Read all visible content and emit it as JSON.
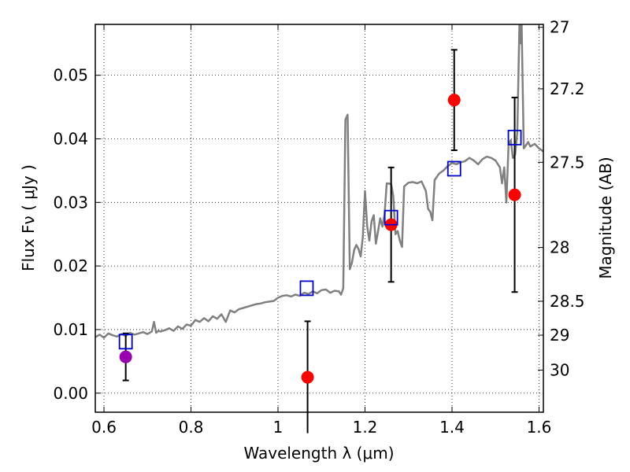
{
  "chart_data": {
    "type": "scatter",
    "xlabel": "Wavelength  λ (μm)",
    "ylabel": "Flux  Fν  ( μJy )",
    "ylabel_right": "Magnitude (AB)",
    "xlim": [
      0.58,
      1.61
    ],
    "ylim": [
      -0.003,
      0.058
    ],
    "grid": true,
    "x_ticks": [
      {
        "value": 0.6,
        "label": "0.6"
      },
      {
        "value": 0.8,
        "label": "0.8"
      },
      {
        "value": 1.0,
        "label": "1"
      },
      {
        "value": 1.2,
        "label": "1.2"
      },
      {
        "value": 1.4,
        "label": "1.4"
      },
      {
        "value": 1.6,
        "label": "1.6"
      }
    ],
    "y_ticks": [
      {
        "value": 0.0,
        "label": "0.00"
      },
      {
        "value": 0.01,
        "label": "0.01"
      },
      {
        "value": 0.02,
        "label": "0.02"
      },
      {
        "value": 0.03,
        "label": "0.03"
      },
      {
        "value": 0.04,
        "label": "0.04"
      },
      {
        "value": 0.05,
        "label": "0.05"
      }
    ],
    "right_ticks": [
      {
        "mag": 27,
        "label": "27"
      },
      {
        "mag": 27.2,
        "label": "27.2"
      },
      {
        "mag": 27.5,
        "label": "27.5"
      },
      {
        "mag": 28,
        "label": "28"
      },
      {
        "mag": 28.5,
        "label": "28.5"
      },
      {
        "mag": 29,
        "label": "29"
      },
      {
        "mag": 30,
        "label": "30"
      }
    ],
    "colors": {
      "model": "#808080",
      "observed": "#ff0000",
      "observed_optical": "#9900b0",
      "synthetic": "#0000cc",
      "grid": "#000000"
    },
    "series": [
      {
        "kind": "line",
        "x": [
          0.58,
          0.59,
          0.6,
          0.61,
          0.62,
          0.63,
          0.64,
          0.65,
          0.66,
          0.67,
          0.68,
          0.69,
          0.7,
          0.71,
          0.715,
          0.72,
          0.725,
          0.73,
          0.74,
          0.75,
          0.76,
          0.77,
          0.78,
          0.79,
          0.8,
          0.81,
          0.82,
          0.83,
          0.84,
          0.85,
          0.86,
          0.87,
          0.88,
          0.89,
          0.9,
          0.91,
          0.92,
          0.93,
          0.94,
          0.95,
          0.96,
          0.97,
          0.98,
          0.99,
          1.0,
          1.01,
          1.02,
          1.03,
          1.04,
          1.05,
          1.06,
          1.07,
          1.08,
          1.09,
          1.1,
          1.11,
          1.12,
          1.13,
          1.14,
          1.145,
          1.15,
          1.155,
          1.16,
          1.165,
          1.17,
          1.175,
          1.18,
          1.185,
          1.19,
          1.195,
          1.2,
          1.205,
          1.21,
          1.215,
          1.22,
          1.225,
          1.23,
          1.235,
          1.24,
          1.245,
          1.25,
          1.26,
          1.265,
          1.27,
          1.275,
          1.28,
          1.285,
          1.29,
          1.3,
          1.31,
          1.32,
          1.33,
          1.34,
          1.345,
          1.35,
          1.355,
          1.36,
          1.37,
          1.38,
          1.39,
          1.4,
          1.41,
          1.42,
          1.43,
          1.44,
          1.45,
          1.46,
          1.47,
          1.48,
          1.49,
          1.5,
          1.51,
          1.515,
          1.52,
          1.525,
          1.53,
          1.535,
          1.54,
          1.545,
          1.55,
          1.553,
          1.555,
          1.558,
          1.56,
          1.565,
          1.57,
          1.575,
          1.58,
          1.59,
          1.6,
          1.61
        ],
        "y": [
          0.0088,
          0.0092,
          0.0087,
          0.0094,
          0.0091,
          0.0089,
          0.0093,
          0.009,
          0.0095,
          0.0092,
          0.0094,
          0.0096,
          0.0093,
          0.0097,
          0.0112,
          0.0095,
          0.0098,
          0.0097,
          0.0099,
          0.0102,
          0.0098,
          0.0105,
          0.0101,
          0.0108,
          0.0106,
          0.0115,
          0.0112,
          0.0118,
          0.0113,
          0.0121,
          0.0117,
          0.0124,
          0.0112,
          0.013,
          0.0127,
          0.0132,
          0.0134,
          0.0136,
          0.0138,
          0.014,
          0.0141,
          0.0143,
          0.0144,
          0.0145,
          0.015,
          0.0153,
          0.0154,
          0.0152,
          0.0155,
          0.0153,
          0.0158,
          0.0156,
          0.016,
          0.0157,
          0.0162,
          0.0163,
          0.0158,
          0.0161,
          0.016,
          0.0155,
          0.0165,
          0.043,
          0.0438,
          0.0195,
          0.0205,
          0.0225,
          0.0233,
          0.0227,
          0.0215,
          0.0245,
          0.0318,
          0.0262,
          0.024,
          0.027,
          0.028,
          0.0235,
          0.0255,
          0.0275,
          0.0262,
          0.0282,
          0.033,
          0.0329,
          0.031,
          0.025,
          0.0255,
          0.024,
          0.023,
          0.0325,
          0.0331,
          0.0332,
          0.033,
          0.0333,
          0.0318,
          0.029,
          0.0285,
          0.0272,
          0.0335,
          0.0345,
          0.035,
          0.0357,
          0.0362,
          0.036,
          0.0363,
          0.0365,
          0.037,
          0.0366,
          0.036,
          0.0368,
          0.0372,
          0.037,
          0.0366,
          0.0355,
          0.033,
          0.0355,
          0.03,
          0.039,
          0.0398,
          0.037,
          0.0375,
          0.041,
          0.051,
          0.058,
          0.055,
          0.058,
          0.0385,
          0.039,
          0.0395,
          0.0388,
          0.0392,
          0.0385,
          0.038
        ]
      },
      {
        "kind": "errorbar-points",
        "x": [
          0.65,
          1.068,
          1.26,
          1.405,
          1.544
        ],
        "y": [
          0.0057,
          0.0025,
          0.0265,
          0.0461,
          0.0312
        ],
        "yerr": [
          0.0037,
          0.0088,
          0.009,
          0.0079,
          0.0153
        ],
        "color_keys": [
          "observed_optical",
          "observed",
          "observed",
          "observed",
          "observed"
        ]
      },
      {
        "kind": "squares",
        "x": [
          0.65,
          1.066,
          1.26,
          1.405,
          1.544
        ],
        "y": [
          0.0081,
          0.0165,
          0.0276,
          0.0353,
          0.0402
        ]
      }
    ]
  }
}
